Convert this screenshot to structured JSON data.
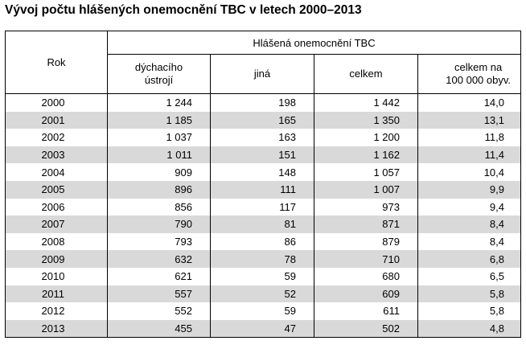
{
  "title": "Vývoj počtu hlášených onemocnění TBC v letech 2000–2013",
  "header": {
    "rok": "Rok",
    "group": "Hlášená onemocnění TBC",
    "col_dychaci_1": "dýchacího",
    "col_dychaci_2": "ústrojí",
    "col_jina": "jiná",
    "col_celkem": "celkem",
    "col_per100k_1": "celkem na",
    "col_per100k_2": "100 000 obyv."
  },
  "rows": [
    {
      "year": "2000",
      "dychaci": "1 244",
      "jina": "198",
      "celkem": "1 442",
      "per100k": "14,0"
    },
    {
      "year": "2001",
      "dychaci": "1 185",
      "jina": "165",
      "celkem": "1 350",
      "per100k": "13,1"
    },
    {
      "year": "2002",
      "dychaci": "1 037",
      "jina": "163",
      "celkem": "1 200",
      "per100k": "11,8"
    },
    {
      "year": "2003",
      "dychaci": "1 011",
      "jina": "151",
      "celkem": "1 162",
      "per100k": "11,4"
    },
    {
      "year": "2004",
      "dychaci": "909",
      "jina": "148",
      "celkem": "1 057",
      "per100k": "10,4"
    },
    {
      "year": "2005",
      "dychaci": "896",
      "jina": "111",
      "celkem": "1 007",
      "per100k": "9,9"
    },
    {
      "year": "2006",
      "dychaci": "856",
      "jina": "117",
      "celkem": "973",
      "per100k": "9,4"
    },
    {
      "year": "2007",
      "dychaci": "790",
      "jina": "81",
      "celkem": "871",
      "per100k": "8,4"
    },
    {
      "year": "2008",
      "dychaci": "793",
      "jina": "86",
      "celkem": "879",
      "per100k": "8,4"
    },
    {
      "year": "2009",
      "dychaci": "632",
      "jina": "78",
      "celkem": "710",
      "per100k": "6,8"
    },
    {
      "year": "2010",
      "dychaci": "621",
      "jina": "59",
      "celkem": "680",
      "per100k": "6,5"
    },
    {
      "year": "2011",
      "dychaci": "557",
      "jina": "52",
      "celkem": "609",
      "per100k": "5,8"
    },
    {
      "year": "2012",
      "dychaci": "552",
      "jina": "59",
      "celkem": "611",
      "per100k": "5,8"
    },
    {
      "year": "2013",
      "dychaci": "455",
      "jina": "47",
      "celkem": "502",
      "per100k": "4,8"
    }
  ],
  "colors": {
    "shade": "#d9d9d9",
    "border": "#000000"
  }
}
